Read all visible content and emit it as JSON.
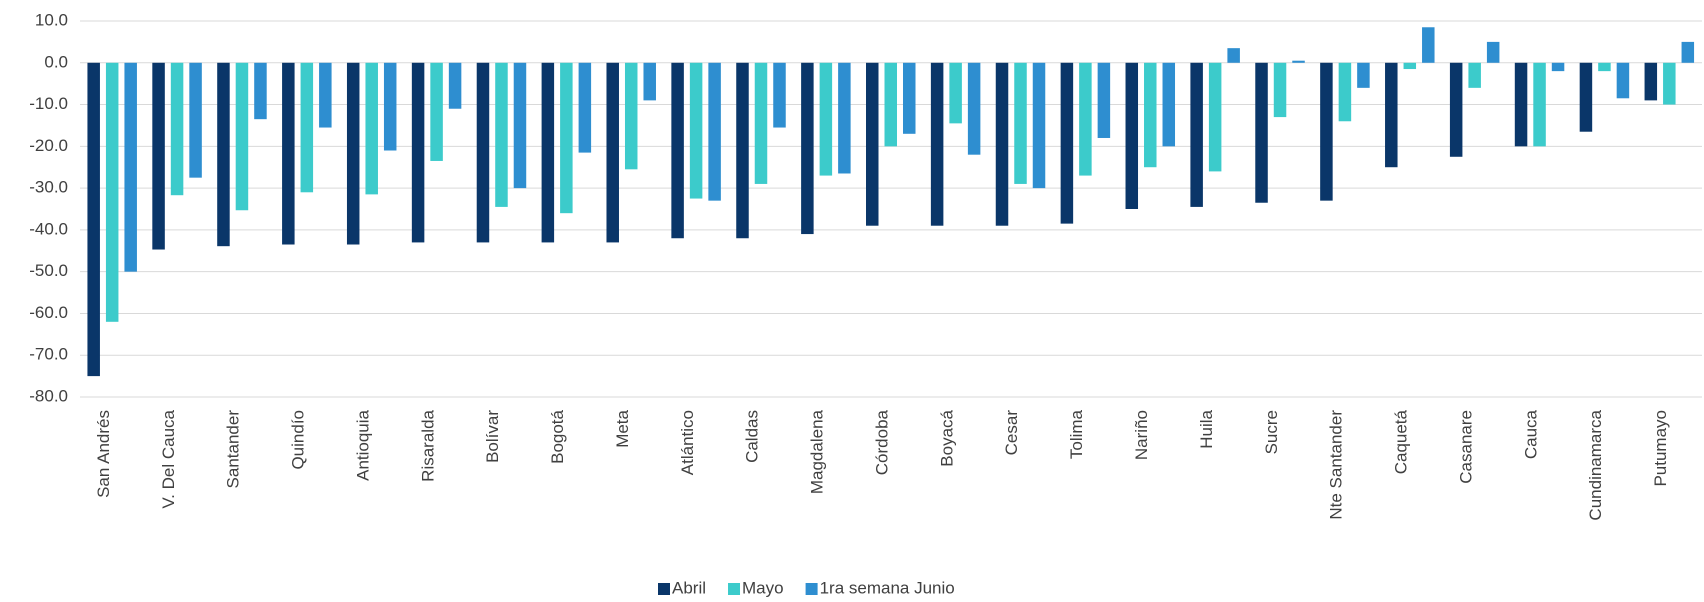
{
  "chart_data": {
    "type": "bar",
    "categories": [
      "San Andrés",
      "V. Del Cauca",
      "Santander",
      "Quindío",
      "Antioquia",
      "Risaralda",
      "Bolívar",
      "Bogotá",
      "Meta",
      "Atlántico",
      "Caldas",
      "Magdalena",
      "Córdoba",
      "Boyacá",
      "Cesar",
      "Tolima",
      "Nariño",
      "Huila",
      "Sucre",
      "Nte Santander",
      "Caquetá",
      "Casanare",
      "Cauca",
      "Cundinamarca",
      "Putumayo"
    ],
    "series": [
      {
        "name": "Abril",
        "color": "#0a3669",
        "values": [
          -75,
          -44.7,
          -43.9,
          -43.5,
          -43.5,
          -43,
          -43,
          -43,
          -43,
          -42,
          -42,
          -41,
          -39,
          -39,
          -39,
          -38.5,
          -35,
          -34.5,
          -33.5,
          -33,
          -25,
          -22.5,
          -20,
          -16.5,
          -9
        ]
      },
      {
        "name": "Mayo",
        "color": "#3ccbcb",
        "values": [
          -62,
          -31.7,
          -35.3,
          -31,
          -31.5,
          -23.5,
          -34.5,
          -36,
          -25.5,
          -32.5,
          -29,
          -27,
          -20,
          -14.5,
          -29,
          -27,
          -25,
          -26,
          -13,
          -14,
          -1.5,
          -6,
          -20,
          -2,
          -10
        ]
      },
      {
        "name": "1ra semana Junio",
        "color": "#2e8ed0",
        "values": [
          -50,
          -27.5,
          -13.5,
          -15.5,
          -21,
          -11,
          -30,
          -21.5,
          -9,
          -33,
          -15.5,
          -26.5,
          -17,
          -22,
          -30,
          -18,
          -20,
          3.5,
          0.5,
          -6,
          8.5,
          5,
          -2,
          -8.5,
          5
        ]
      }
    ],
    "ylim": [
      -80,
      10
    ],
    "yticks": [
      {
        "value": 10,
        "label": "10.0"
      },
      {
        "value": 0,
        "label": "0.0"
      },
      {
        "value": -10,
        "label": "-10.0"
      },
      {
        "value": -20,
        "label": "-20.0"
      },
      {
        "value": -30,
        "label": "-30.0"
      },
      {
        "value": -40,
        "label": "-40.0"
      },
      {
        "value": -50,
        "label": "-50.0"
      },
      {
        "value": -60,
        "label": "-60.0"
      },
      {
        "value": -70,
        "label": "-70.0"
      },
      {
        "value": -80,
        "label": "-80.0"
      }
    ],
    "grid": true,
    "legend": "bottom"
  }
}
